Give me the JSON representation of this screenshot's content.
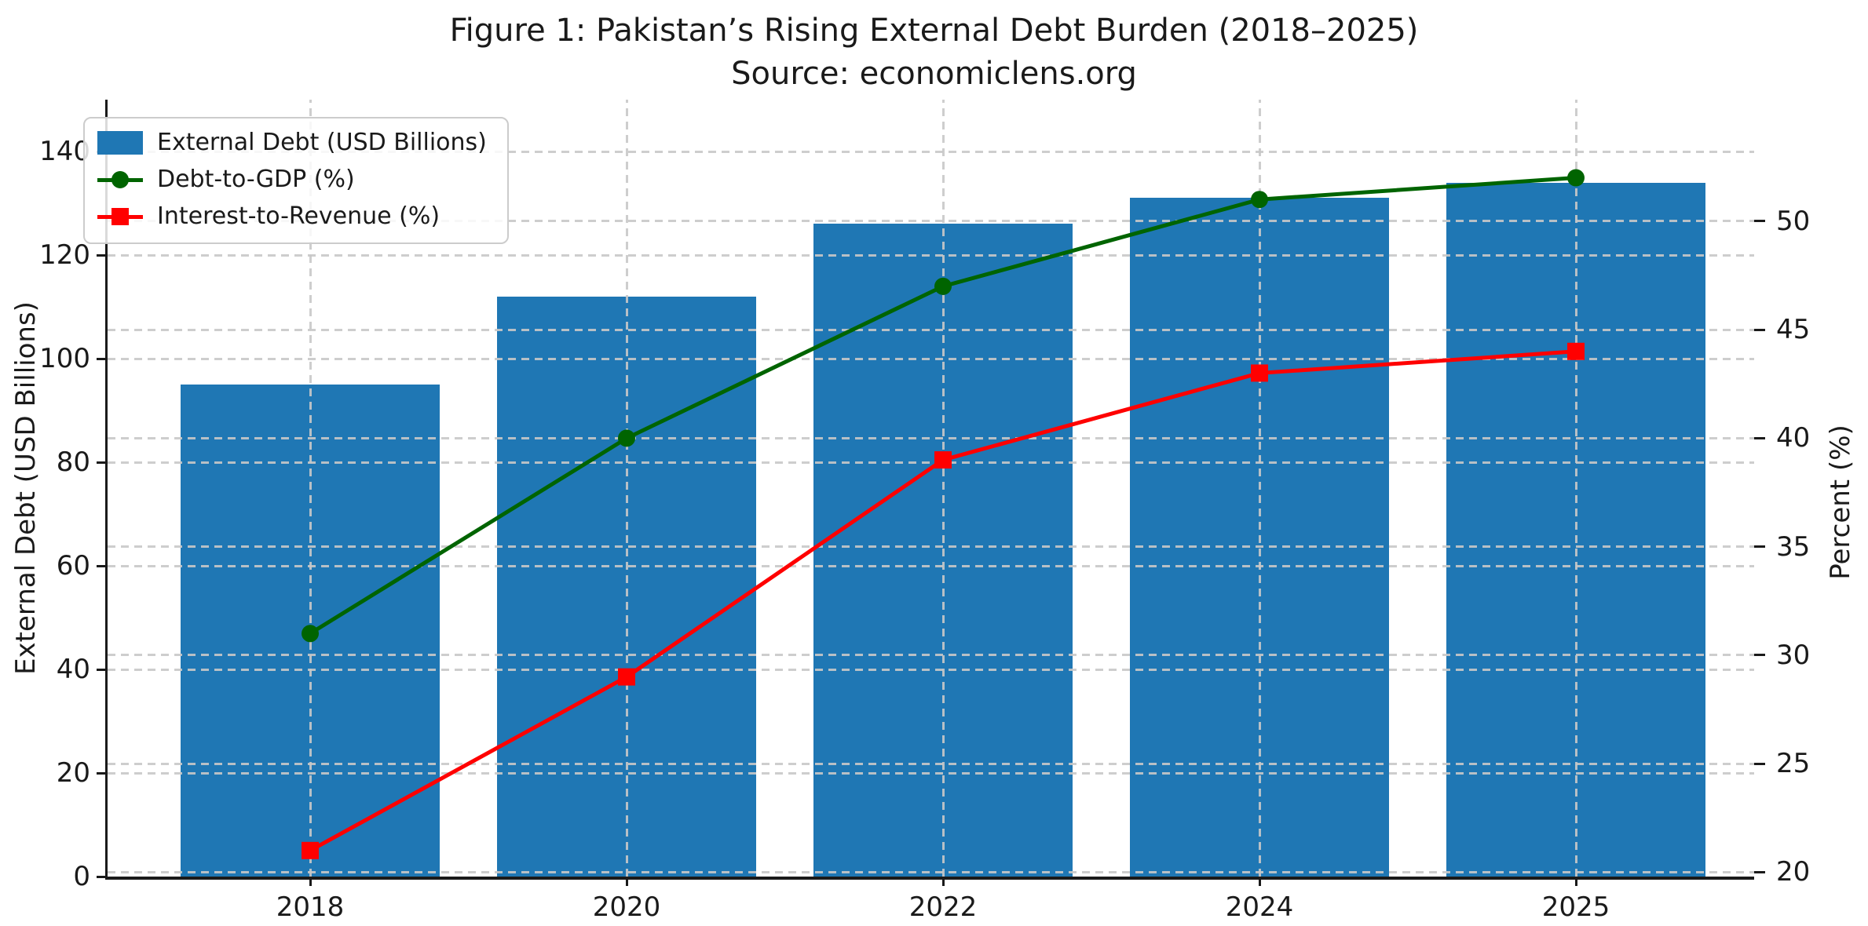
{
  "figure": {
    "title_line1": "Figure 1: Pakistan’s Rising External Debt Burden (2018–2025)",
    "title_line2": "Source: economiclens.org"
  },
  "chart_data": {
    "type": "combo-bar-line",
    "title": "Figure 1: Pakistan’s Rising External Debt Burden (2018–2025)",
    "subtitle": "Source: economiclens.org",
    "categories": [
      "2018",
      "2020",
      "2022",
      "2024",
      "2025"
    ],
    "series": [
      {
        "name": "External Debt (USD Billions)",
        "type": "bar",
        "axis": "left",
        "color": "#1f77b4",
        "values": [
          95,
          112,
          126,
          131,
          134
        ]
      },
      {
        "name": "Debt-to-GDP (%)",
        "type": "line",
        "axis": "right",
        "color": "#006400",
        "marker": "circle",
        "values": [
          31,
          40,
          47,
          51,
          52
        ]
      },
      {
        "name": "Interest-to-Revenue (%)",
        "type": "line",
        "axis": "right",
        "color": "#ff0000",
        "marker": "square",
        "values": [
          21,
          29,
          39,
          43,
          44
        ]
      }
    ],
    "left_axis": {
      "label": "External Debt (USD Billions)",
      "range": [
        0,
        150
      ],
      "ticks": [
        0,
        20,
        40,
        60,
        80,
        100,
        120,
        140
      ]
    },
    "right_axis": {
      "label": "Percent (%)",
      "range": [
        19.8,
        55.6
      ],
      "ticks": [
        20,
        25,
        30,
        35,
        40,
        45,
        50
      ]
    },
    "grid": {
      "style": "dashed",
      "color": "#c8c8c8",
      "vertical": true,
      "horizontal": true
    },
    "legend": {
      "position": "upper-left"
    }
  }
}
